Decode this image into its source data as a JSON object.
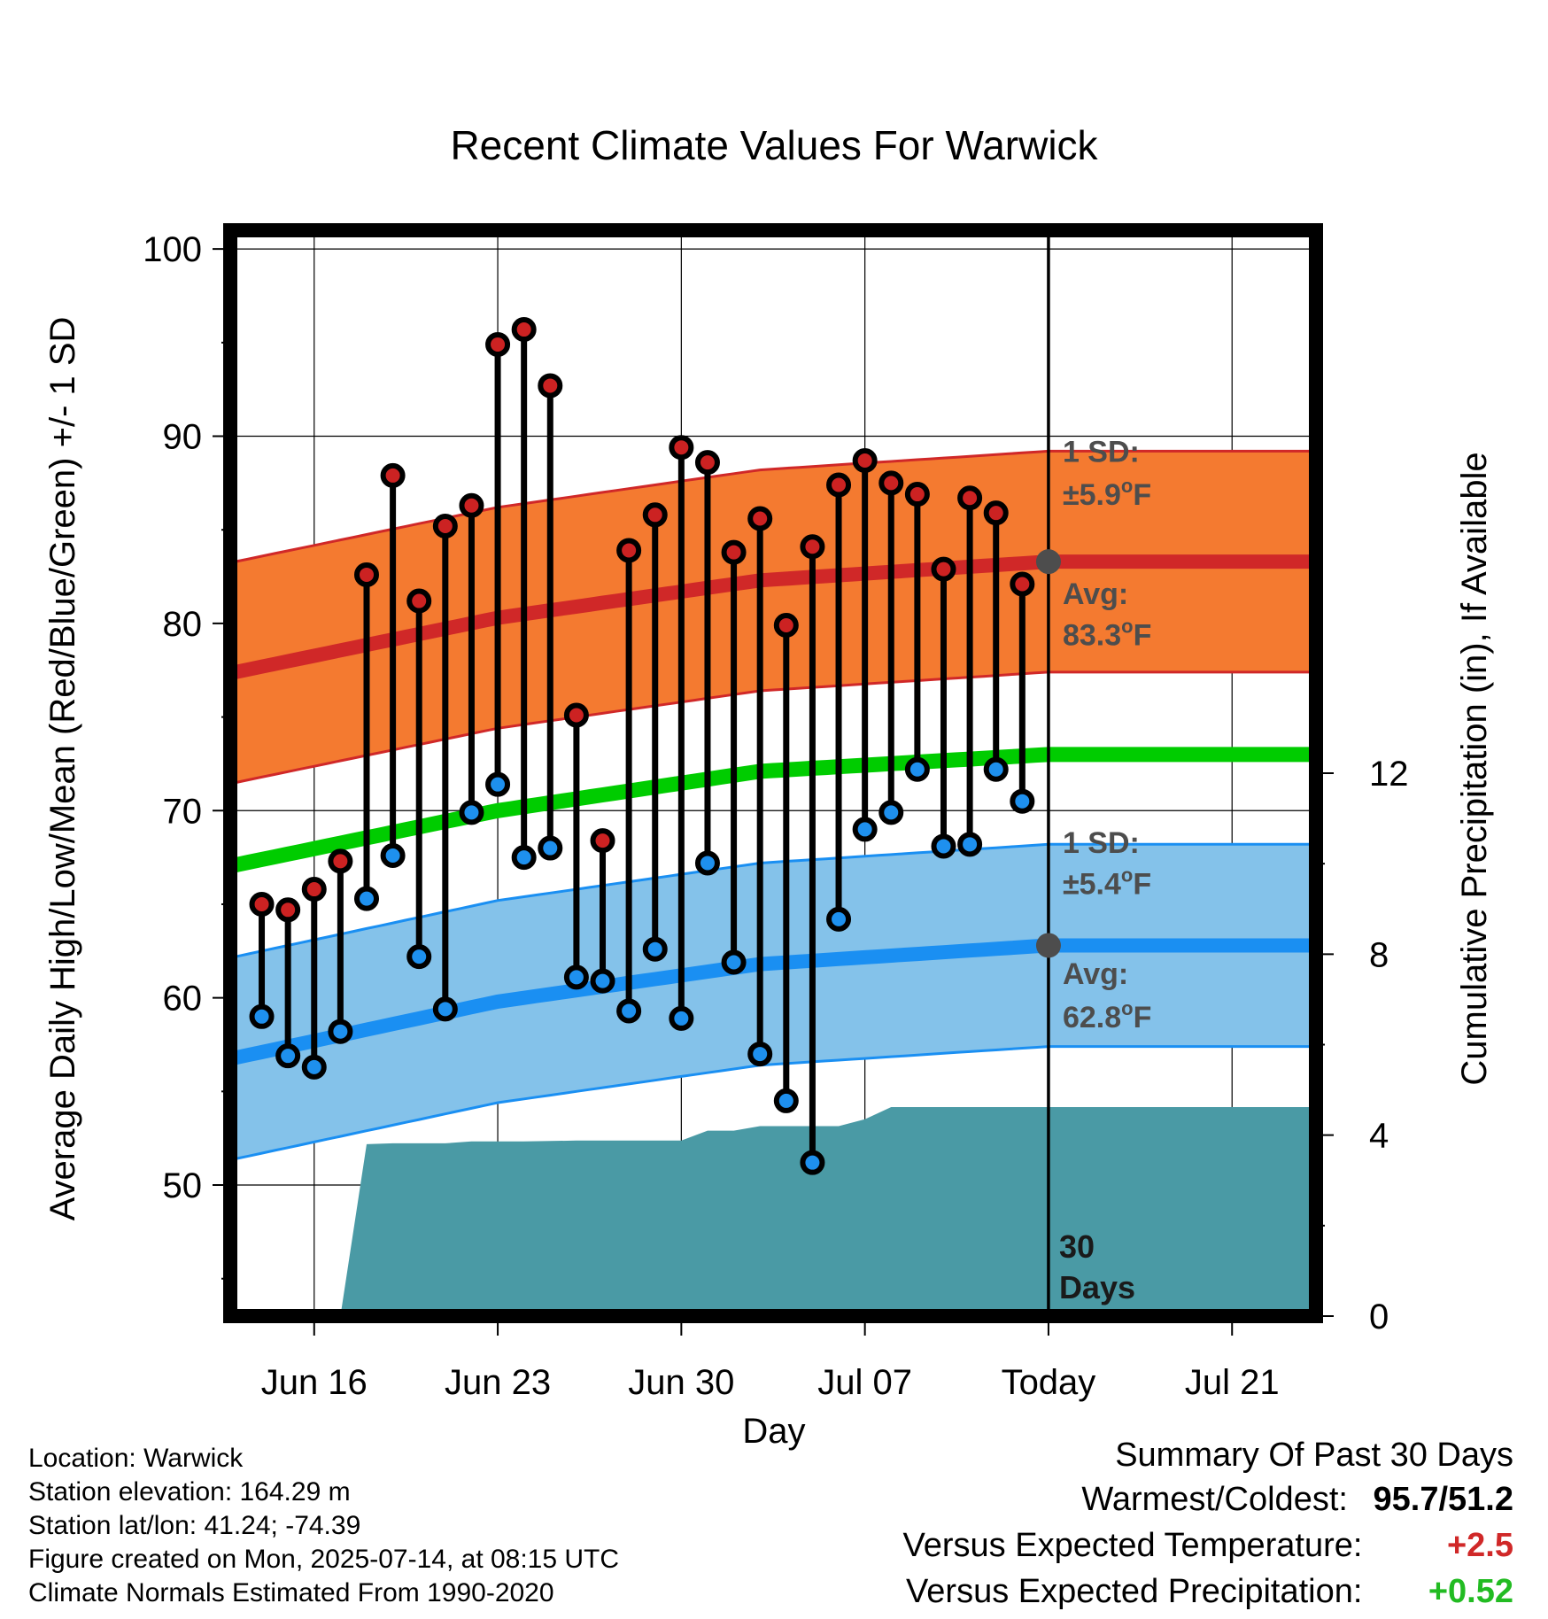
{
  "chart_data": {
    "type": "line",
    "title": "Recent Climate Values For Warwick",
    "xlabel": "Day",
    "ylabel": "Average Daily High/Low/Mean (Red/Blue/Green) +/- 1 SD",
    "y2label": "Cumulative Precipitation (in), If Available",
    "ylim": [
      43,
      101
    ],
    "y2lim": [
      0,
      24
    ],
    "x_tick_labels": [
      "Jun 16",
      "Jun 23",
      "Jun 30",
      "Jul 07",
      "Today",
      "Jul 21"
    ],
    "x_tick_days": [
      3,
      10,
      17,
      24,
      31,
      38
    ],
    "xlim": [
      -0.2,
      41.2
    ],
    "y_ticks": [
      50,
      60,
      70,
      80,
      90,
      100
    ],
    "y2_ticks": [
      0,
      4,
      8,
      12
    ],
    "today_day": 31,
    "today_label_line1": "30",
    "today_label_line2": "Days",
    "daily_high": [
      [
        1,
        65.0
      ],
      [
        2,
        64.7
      ],
      [
        3,
        65.8
      ],
      [
        4,
        67.3
      ],
      [
        5,
        82.6
      ],
      [
        6,
        87.9
      ],
      [
        7,
        81.2
      ],
      [
        8,
        85.2
      ],
      [
        9,
        86.3
      ],
      [
        10,
        94.9
      ],
      [
        11,
        95.7
      ],
      [
        12,
        92.7
      ],
      [
        13,
        75.1
      ],
      [
        14,
        68.4
      ],
      [
        15,
        83.9
      ],
      [
        16,
        85.8
      ],
      [
        17,
        89.4
      ],
      [
        18,
        88.6
      ],
      [
        19,
        83.8
      ],
      [
        20,
        85.6
      ],
      [
        21,
        79.9
      ],
      [
        22,
        84.1
      ],
      [
        23,
        87.4
      ],
      [
        24,
        88.7
      ],
      [
        25,
        87.5
      ],
      [
        26,
        86.9
      ],
      [
        27,
        82.9
      ],
      [
        28,
        86.7
      ],
      [
        29,
        85.9
      ],
      [
        30,
        82.1
      ]
    ],
    "daily_low": [
      [
        1,
        59.0
      ],
      [
        2,
        56.9
      ],
      [
        3,
        56.3
      ],
      [
        4,
        58.2
      ],
      [
        5,
        65.3
      ],
      [
        6,
        67.6
      ],
      [
        7,
        62.2
      ],
      [
        8,
        59.4
      ],
      [
        9,
        69.9
      ],
      [
        10,
        71.4
      ],
      [
        11,
        67.5
      ],
      [
        12,
        68.0
      ],
      [
        13,
        61.1
      ],
      [
        14,
        60.9
      ],
      [
        15,
        59.3
      ],
      [
        16,
        62.6
      ],
      [
        17,
        58.9
      ],
      [
        18,
        67.2
      ],
      [
        19,
        61.9
      ],
      [
        20,
        57.0
      ],
      [
        21,
        54.5
      ],
      [
        22,
        51.2
      ],
      [
        23,
        64.2
      ],
      [
        24,
        69.0
      ],
      [
        25,
        69.9
      ],
      [
        26,
        72.2
      ],
      [
        27,
        68.1
      ],
      [
        28,
        68.2
      ],
      [
        29,
        72.2
      ],
      [
        30,
        70.5
      ]
    ],
    "normal_high": [
      [
        0,
        77.4
      ],
      [
        10,
        80.3
      ],
      [
        20,
        82.3
      ],
      [
        31,
        83.3
      ],
      [
        41,
        83.3
      ]
    ],
    "normal_high_sd": 5.9,
    "normal_low": [
      [
        0,
        56.8
      ],
      [
        10,
        59.8
      ],
      [
        20,
        61.8
      ],
      [
        31,
        62.8
      ],
      [
        41,
        62.8
      ]
    ],
    "normal_low_sd": 5.4,
    "normal_mean": [
      [
        0,
        67.1
      ],
      [
        10,
        70.0
      ],
      [
        20,
        72.1
      ],
      [
        31,
        73.0
      ],
      [
        41,
        73.0
      ]
    ],
    "precip_cumulative": [
      [
        4,
        0.0
      ],
      [
        5,
        3.8
      ],
      [
        6,
        3.82
      ],
      [
        7,
        3.82
      ],
      [
        8,
        3.82
      ],
      [
        9,
        3.86
      ],
      [
        10,
        3.86
      ],
      [
        11,
        3.86
      ],
      [
        12,
        3.87
      ],
      [
        13,
        3.88
      ],
      [
        14,
        3.88
      ],
      [
        15,
        3.88
      ],
      [
        16,
        3.88
      ],
      [
        17,
        3.88
      ],
      [
        18,
        4.1
      ],
      [
        19,
        4.1
      ],
      [
        20,
        4.2
      ],
      [
        21,
        4.2
      ],
      [
        22,
        4.2
      ],
      [
        23,
        4.2
      ],
      [
        24,
        4.35
      ],
      [
        25,
        4.62
      ],
      [
        41,
        4.62
      ]
    ],
    "normal_high_label": [
      "Avg:",
      "83.3",
      "F"
    ],
    "normal_high_sd_label": [
      "1 SD:",
      "±5.9",
      "F"
    ],
    "normal_low_label": [
      "Avg:",
      "62.8",
      "F"
    ],
    "normal_low_sd_label": [
      "1 SD:",
      "±5.4",
      "F"
    ],
    "degree_symbol": "o",
    "colors": {
      "high_band": "#f47a30",
      "high_line": "#d02828",
      "low_band": "#84c2ea",
      "low_line": "#1a8ff2",
      "mean_line": "#00cc00",
      "precip": "#4a9aa5",
      "high_marker": "#cc2222",
      "low_marker": "#1e90ee"
    }
  },
  "footer": {
    "location": "Location: Warwick",
    "elevation": "Station elevation: 164.29 m",
    "latlon": "Station lat/lon: 41.24; -74.39",
    "created": "Figure created on Mon, 2025-07-14, at 08:15 UTC",
    "normals": "Climate Normals Estimated From 1990-2020"
  },
  "summary": {
    "title": "Summary Of Past 30 Days",
    "warm_cold_label": "Warmest/Coldest:",
    "warm_cold_value": "95.7/51.2",
    "temp_label": "Versus Expected Temperature:",
    "temp_value": "+2.5",
    "temp_color": "#d02828",
    "precip_label": "Versus Expected Precipitation:",
    "precip_value": "+0.52",
    "precip_color": "#22bb22"
  }
}
